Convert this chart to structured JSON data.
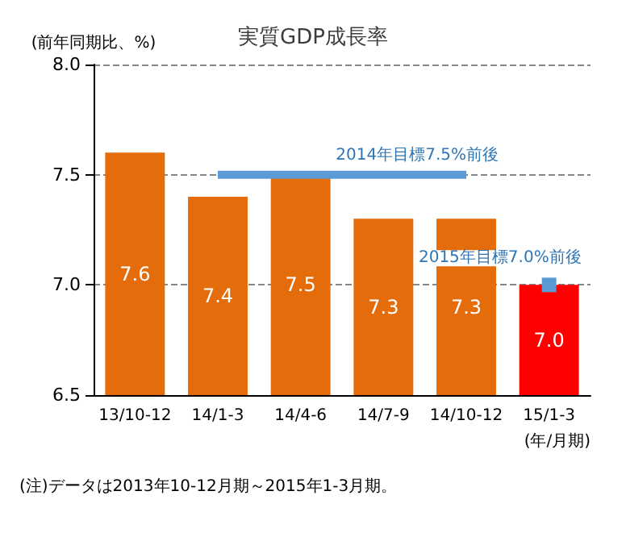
{
  "chart_data": {
    "type": "bar",
    "title": "実質GDP成長率",
    "ylabel": "(前年同期比、%)",
    "xlabel": "(年/月期)",
    "categories": [
      "13/10-12",
      "14/1-3",
      "14/4-6",
      "14/7-9",
      "14/10-12",
      "15/1-3"
    ],
    "series": [
      {
        "color": "#e46c0a",
        "colors": [
          "#e46c0a",
          "#e46c0a",
          "#e46c0a",
          "#e46c0a",
          "#e46c0a",
          "#ff0000"
        ],
        "values": [
          7.6,
          7.4,
          7.5,
          7.3,
          7.3,
          7.0
        ],
        "value_labels": [
          "7.6",
          "7.4",
          "7.5",
          "7.3",
          "7.3",
          "7.0"
        ]
      },
      {
        "type": "line",
        "name": "2014年目標7.5%前後",
        "color": "#5b9bd5",
        "values": [
          null,
          7.5,
          7.5,
          7.5,
          7.5,
          null
        ]
      },
      {
        "type": "line",
        "name": "2015年目標7.0%前後",
        "color": "#5b9bd5",
        "marker": "square",
        "values": [
          null,
          null,
          null,
          null,
          null,
          7.0
        ]
      }
    ],
    "ylim": [
      6.5,
      8.0
    ],
    "yticks": [
      6.5,
      {
        "value": 7.0,
        "label": "7.0"
      },
      7.5,
      {
        "value": 8.0,
        "label": "8.0"
      }
    ],
    "grid": "y",
    "legend": false,
    "annotations": [
      "(注)データは2013年10-12月期～2015年1-3月期。"
    ]
  }
}
